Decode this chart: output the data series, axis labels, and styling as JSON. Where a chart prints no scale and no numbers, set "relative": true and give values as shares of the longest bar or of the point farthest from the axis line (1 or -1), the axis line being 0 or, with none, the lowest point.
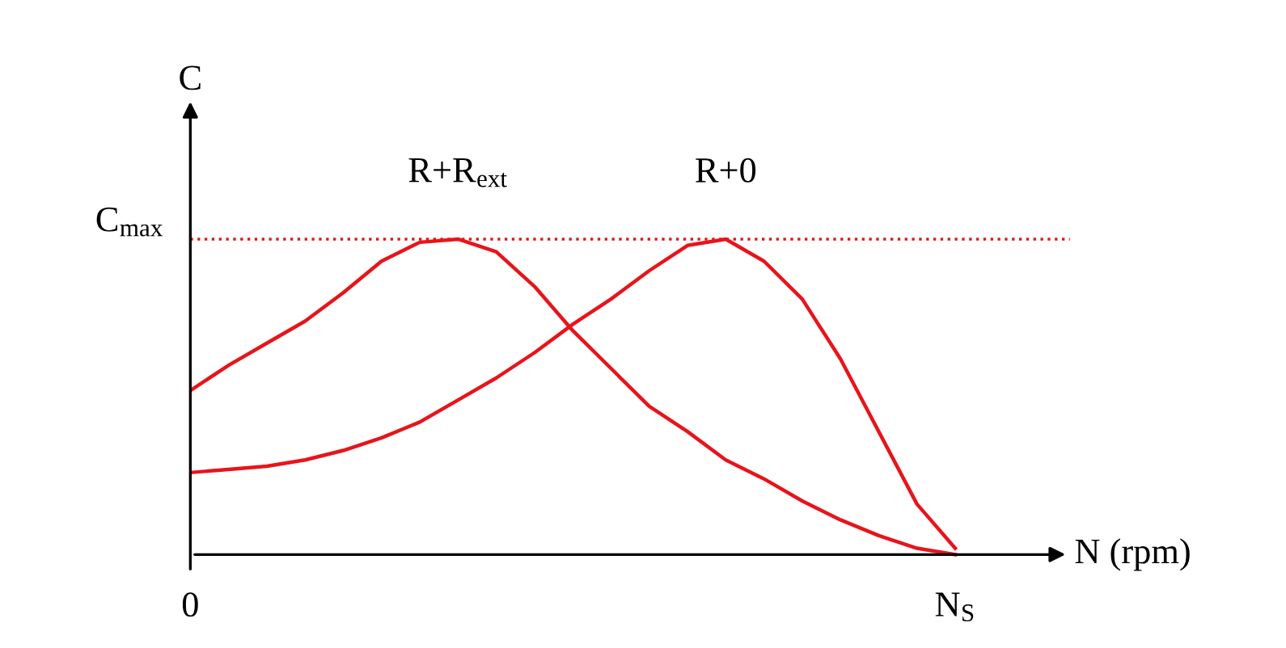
{
  "chart_data": {
    "type": "line",
    "relative": true,
    "xlabel": "N (rpm)",
    "ylabel": "C",
    "categories": [
      "0",
      null,
      null,
      null,
      null,
      null,
      null,
      null,
      null,
      null,
      null,
      null,
      null,
      null,
      null,
      null,
      null,
      null,
      null,
      null,
      "N$_{S}$"
    ],
    "tick_labels": "x",
    "grid": false,
    "legend": false,
    "marker": "none",
    "line_style": "solid",
    "ref_lines": [
      {
        "axis": "y",
        "value": 1,
        "label": "C$_{max}$",
        "color": "#e8141b",
        "line_style": "dotted"
      }
    ],
    "series": [
      {
        "name": "R+R$_{ext}$",
        "color": "#e8141b",
        "values": [
          0.52,
          0.6,
          0.67,
          0.74,
          0.83,
          0.93,
          0.99,
          1,
          0.96,
          0.85,
          0.71,
          0.59,
          0.47,
          0.39,
          0.3,
          0.24,
          0.17,
          0.11,
          0.06,
          0.02,
          0
        ]
      },
      {
        "name": "R+0",
        "color": "#e8141b",
        "values": [
          0.26,
          0.27,
          0.28,
          0.3,
          0.33,
          0.37,
          0.42,
          0.49,
          0.56,
          0.64,
          0.73,
          0.81,
          0.9,
          0.98,
          1,
          0.93,
          0.81,
          0.62,
          0.39,
          0.16,
          0.02
        ]
      }
    ]
  }
}
